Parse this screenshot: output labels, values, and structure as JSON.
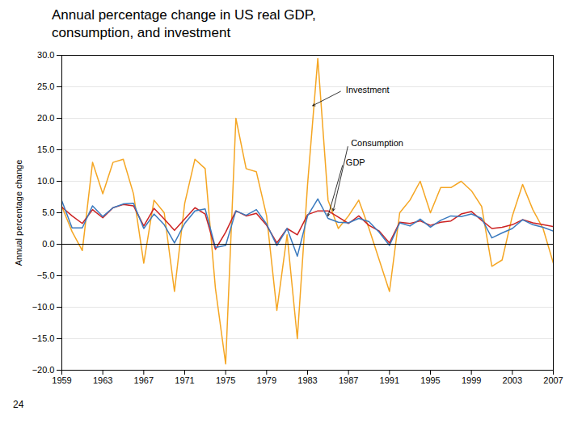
{
  "chart_data": {
    "type": "line",
    "title": "Annual percentage change in US real GDP,",
    "subtitle": "consumption, and investment",
    "ylabel": "Annual percentage change",
    "caption": "24",
    "x": [
      1959,
      1960,
      1961,
      1962,
      1963,
      1964,
      1965,
      1966,
      1967,
      1968,
      1969,
      1970,
      1971,
      1972,
      1973,
      1974,
      1975,
      1976,
      1977,
      1978,
      1979,
      1980,
      1981,
      1982,
      1983,
      1984,
      1985,
      1986,
      1987,
      1988,
      1989,
      1990,
      1991,
      1992,
      1993,
      1994,
      1995,
      1996,
      1997,
      1998,
      1999,
      2000,
      2001,
      2002,
      2003,
      2004,
      2005,
      2006,
      2007
    ],
    "series": [
      {
        "name": "Investment",
        "color": "#f5a623",
        "values": [
          6.0,
          2.0,
          -1.0,
          13.0,
          8.0,
          13.0,
          13.5,
          8.0,
          -3.0,
          7.0,
          5.0,
          -7.5,
          6.5,
          13.5,
          12.0,
          -7.0,
          -19.0,
          20.0,
          12.0,
          11.5,
          4.5,
          -10.5,
          1.5,
          -15.0,
          9.5,
          29.5,
          7.0,
          2.5,
          4.5,
          7.0,
          2.5,
          -2.5,
          -7.5,
          5.0,
          7.0,
          10.0,
          5.0,
          9.0,
          9.0,
          10.0,
          8.5,
          6.0,
          -3.5,
          -2.5,
          4.5,
          9.5,
          5.5,
          2.5,
          -3.0
        ]
      },
      {
        "name": "Consumption",
        "color": "#cc2222",
        "values": [
          5.9,
          4.5,
          3.3,
          5.5,
          4.2,
          5.8,
          6.3,
          6.1,
          2.9,
          5.7,
          4.0,
          2.2,
          4.0,
          5.8,
          4.8,
          -0.8,
          1.9,
          5.3,
          4.5,
          4.9,
          3.0,
          0.2,
          2.5,
          1.5,
          4.7,
          5.3,
          5.3,
          4.3,
          3.3,
          4.5,
          3.0,
          2.1,
          0.2,
          3.5,
          3.3,
          3.7,
          3.0,
          3.5,
          3.7,
          4.8,
          5.2,
          3.8,
          2.5,
          2.7,
          3.1,
          3.9,
          3.4,
          3.1,
          2.8
        ]
      },
      {
        "name": "GDP",
        "color": "#3a7abf",
        "values": [
          6.9,
          2.6,
          2.6,
          6.1,
          4.4,
          5.8,
          6.4,
          6.5,
          2.5,
          4.8,
          3.1,
          0.2,
          3.3,
          5.3,
          5.6,
          -0.5,
          -0.2,
          5.3,
          4.6,
          5.5,
          3.2,
          -0.2,
          2.5,
          -1.9,
          4.5,
          7.2,
          4.1,
          3.5,
          3.4,
          4.1,
          3.6,
          1.9,
          -0.2,
          3.4,
          2.9,
          4.0,
          2.7,
          3.8,
          4.5,
          4.4,
          4.8,
          4.1,
          1.0,
          1.8,
          2.5,
          3.9,
          3.1,
          2.7,
          2.1
        ]
      }
    ],
    "xlim": [
      1959,
      2007
    ],
    "xticks": [
      1959,
      1963,
      1967,
      1971,
      1975,
      1979,
      1983,
      1987,
      1991,
      1995,
      1999,
      2003,
      2007
    ],
    "ylim": [
      -20.0,
      30.0
    ],
    "yticks": [
      {
        "value": -20.0,
        "label": "−20.0"
      },
      {
        "value": -15.0,
        "label": "−15.0"
      },
      {
        "value": -10.0,
        "label": "−10.0"
      },
      {
        "value": -5.0,
        "label": "−5.0"
      },
      {
        "value": 0.0,
        "label": "0.0"
      },
      {
        "value": 5.0,
        "label": "5.0"
      },
      {
        "value": 10.0,
        "label": "10.0"
      },
      {
        "value": 15.0,
        "label": "15.0"
      },
      {
        "value": 20.0,
        "label": "20.0"
      },
      {
        "value": 25.0,
        "label": "25.0"
      },
      {
        "value": 30.0,
        "label": "30.0"
      }
    ],
    "grid": true,
    "annotations": [
      {
        "text": "Investment",
        "x": 1983.5,
        "y": 22.0,
        "text_x": 1986.5,
        "text_y": 24.5
      },
      {
        "text": "Consumption",
        "x": 1985.5,
        "y": 5.3,
        "text_x": 1987.0,
        "text_y": 16.0
      },
      {
        "text": "GDP",
        "x": 1985.0,
        "y": 4.5,
        "text_x": 1986.5,
        "text_y": 13.0
      }
    ]
  }
}
